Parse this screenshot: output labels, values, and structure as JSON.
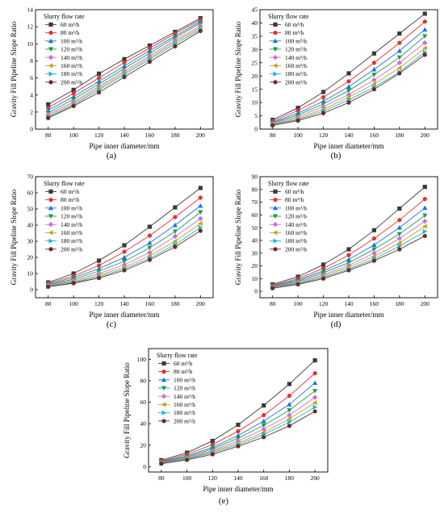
{
  "figure": {
    "panel_labels": [
      "(a)",
      "(b)",
      "(c)",
      "(d)",
      "(e)"
    ]
  },
  "legend": {
    "title": "Slurry flow rate",
    "unit_suffix": " m³/h"
  },
  "series_style": [
    {
      "name": "60",
      "color": "#3a3a3a",
      "marker": "square"
    },
    {
      "name": "80",
      "color": "#e8312f",
      "marker": "circle"
    },
    {
      "name": "100",
      "color": "#1f6fe0",
      "marker": "triangle-up"
    },
    {
      "name": "120",
      "color": "#1a9e4a",
      "marker": "triangle-down"
    },
    {
      "name": "140",
      "color": "#c86fd8",
      "marker": "diamond"
    },
    {
      "name": "160",
      "color": "#c8a21a",
      "marker": "triangle-left"
    },
    {
      "name": "180",
      "color": "#16b8d8",
      "marker": "triangle-right"
    },
    {
      "name": "200",
      "color": "#6b2a2a",
      "marker": "circle"
    }
  ],
  "chart_data": [
    {
      "type": "line",
      "panel": "(a)",
      "xlabel": "Pipe inner diameter/mm",
      "ylabel": "Gravity Fill Pipeline Slope Ratio",
      "x": [
        80,
        100,
        120,
        140,
        160,
        180,
        200
      ],
      "xlim": [
        70,
        210
      ],
      "ylim": [
        0,
        14
      ],
      "yticks": [
        0,
        2,
        4,
        6,
        8,
        10,
        12,
        14
      ],
      "legend_title": "Slurry flow rate",
      "legend_position": "top-left",
      "series": [
        {
          "name": "60 m³/h",
          "values": [
            2.9,
            4.6,
            6.5,
            8.2,
            9.8,
            11.4,
            13.0
          ]
        },
        {
          "name": "80 m³/h",
          "values": [
            2.5,
            4.2,
            6.0,
            7.8,
            9.5,
            11.2,
            12.8
          ]
        },
        {
          "name": "100 m³/h",
          "values": [
            2.2,
            3.8,
            5.6,
            7.4,
            9.2,
            10.9,
            12.6
          ]
        },
        {
          "name": "120 m³/h",
          "values": [
            1.9,
            3.5,
            5.3,
            7.1,
            8.9,
            10.7,
            12.4
          ]
        },
        {
          "name": "140 m³/h",
          "values": [
            1.7,
            3.2,
            5.0,
            6.8,
            8.6,
            10.4,
            12.1
          ]
        },
        {
          "name": "160 m³/h",
          "values": [
            1.55,
            3.0,
            4.8,
            6.6,
            8.4,
            10.2,
            11.9
          ]
        },
        {
          "name": "180 m³/h",
          "values": [
            1.4,
            2.85,
            4.6,
            6.4,
            8.2,
            10.0,
            11.7
          ]
        },
        {
          "name": "200 m³/h",
          "values": [
            1.3,
            2.7,
            4.3,
            6.1,
            7.9,
            9.7,
            11.5
          ]
        }
      ]
    },
    {
      "type": "line",
      "panel": "(b)",
      "xlabel": "Pipe inner diameter/mm",
      "ylabel": "Gravity Fill Pipeline Slope Ratio",
      "x": [
        80,
        100,
        120,
        140,
        160,
        180,
        200
      ],
      "xlim": [
        70,
        210
      ],
      "ylim": [
        0,
        45
      ],
      "yticks": [
        0,
        5,
        10,
        15,
        20,
        25,
        30,
        35,
        40,
        45
      ],
      "legend_title": "Slurry flow rate",
      "legend_position": "top-left",
      "series": [
        {
          "name": "60 m³/h",
          "values": [
            3.5,
            8.0,
            14.0,
            21.0,
            28.5,
            36.0,
            43.5
          ]
        },
        {
          "name": "80 m³/h",
          "values": [
            3.0,
            7.0,
            12.0,
            18.0,
            25.0,
            32.5,
            40.5
          ]
        },
        {
          "name": "100 m³/h",
          "values": [
            2.6,
            6.0,
            10.5,
            16.0,
            22.5,
            29.5,
            37.5
          ]
        },
        {
          "name": "120 m³/h",
          "values": [
            2.3,
            5.3,
            9.5,
            14.5,
            20.5,
            27.0,
            35.0
          ]
        },
        {
          "name": "140 m³/h",
          "values": [
            2.0,
            4.6,
            8.5,
            13.0,
            18.5,
            25.0,
            32.5
          ]
        },
        {
          "name": "160 m³/h",
          "values": [
            1.8,
            4.0,
            7.5,
            12.0,
            17.0,
            23.0,
            30.5
          ]
        },
        {
          "name": "180 m³/h",
          "values": [
            1.6,
            3.6,
            6.8,
            11.0,
            15.8,
            21.5,
            29.0
          ]
        },
        {
          "name": "200 m³/h",
          "values": [
            1.4,
            3.2,
            6.0,
            10.0,
            15.0,
            21.0,
            28.0
          ]
        }
      ]
    },
    {
      "type": "line",
      "panel": "(c)",
      "xlabel": "Pipe inner diameter/mm",
      "ylabel": "Gravity Fill Pipeline Slope Ratio",
      "x": [
        80,
        100,
        120,
        140,
        160,
        180,
        200
      ],
      "xlim": [
        70,
        210
      ],
      "ylim": [
        -5,
        70
      ],
      "yticks": [
        0,
        10,
        20,
        30,
        40,
        50,
        60,
        70
      ],
      "legend_title": "Slurry flow rate",
      "legend_position": "top-left",
      "series": [
        {
          "name": "60 m³/h",
          "values": [
            4.5,
            10.0,
            18.0,
            27.5,
            39.0,
            51.0,
            63.0
          ]
        },
        {
          "name": "80 m³/h",
          "values": [
            4.0,
            8.5,
            15.0,
            23.5,
            33.5,
            45.0,
            57.0
          ]
        },
        {
          "name": "100 m³/h",
          "values": [
            3.5,
            7.5,
            13.0,
            20.0,
            29.0,
            40.0,
            52.0
          ]
        },
        {
          "name": "120 m³/h",
          "values": [
            3.0,
            6.5,
            11.5,
            17.5,
            26.0,
            36.0,
            48.0
          ]
        },
        {
          "name": "140 m³/h",
          "values": [
            2.6,
            5.7,
            10.0,
            15.5,
            23.0,
            33.0,
            44.0
          ]
        },
        {
          "name": "160 m³/h",
          "values": [
            2.3,
            5.0,
            9.0,
            14.0,
            21.0,
            30.0,
            41.0
          ]
        },
        {
          "name": "180 m³/h",
          "values": [
            2.0,
            4.5,
            8.0,
            13.0,
            19.5,
            28.0,
            38.5
          ]
        },
        {
          "name": "200 m³/h",
          "values": [
            1.8,
            4.0,
            7.2,
            12.0,
            18.5,
            26.5,
            36.5
          ]
        }
      ]
    },
    {
      "type": "line",
      "panel": "(d)",
      "xlabel": "Pipe inner diameter/mm",
      "ylabel": "Gravity Fill Pipeline Slope Ratio",
      "x": [
        80,
        100,
        120,
        140,
        160,
        180,
        200
      ],
      "xlim": [
        70,
        210
      ],
      "ylim": [
        -5,
        90
      ],
      "yticks": [
        0,
        10,
        20,
        30,
        40,
        50,
        60,
        70,
        80,
        90
      ],
      "legend_title": "Slurry flow rate",
      "legend_position": "top-left",
      "series": [
        {
          "name": "60 m³/h",
          "values": [
            5.5,
            11.5,
            21.0,
            33.0,
            48.0,
            65.0,
            82.0
          ]
        },
        {
          "name": "80 m³/h",
          "values": [
            4.8,
            10.0,
            18.0,
            28.5,
            41.5,
            56.0,
            72.5
          ]
        },
        {
          "name": "100 m³/h",
          "values": [
            4.2,
            9.0,
            16.0,
            25.0,
            36.5,
            50.0,
            65.5
          ]
        },
        {
          "name": "120 m³/h",
          "values": [
            3.7,
            8.0,
            14.5,
            22.5,
            33.0,
            45.0,
            59.5
          ]
        },
        {
          "name": "140 m³/h",
          "values": [
            3.3,
            7.2,
            13.0,
            20.5,
            30.0,
            41.5,
            55.0
          ]
        },
        {
          "name": "160 m³/h",
          "values": [
            3.0,
            6.5,
            12.0,
            19.0,
            27.5,
            38.0,
            51.0
          ]
        },
        {
          "name": "180 m³/h",
          "values": [
            2.7,
            6.0,
            11.0,
            17.5,
            25.5,
            35.5,
            47.0
          ]
        },
        {
          "name": "200 m³/h",
          "values": [
            2.5,
            5.5,
            10.0,
            16.5,
            24.0,
            33.0,
            43.5
          ]
        }
      ]
    },
    {
      "type": "line",
      "panel": "(e)",
      "xlabel": "Pipe inner diameter/mm",
      "ylabel": "Gravity Fill Pipeline Slope Ratio",
      "x": [
        80,
        100,
        120,
        140,
        160,
        180,
        200
      ],
      "xlim": [
        70,
        210
      ],
      "ylim": [
        -5,
        110
      ],
      "yticks": [
        0,
        20,
        40,
        60,
        80,
        100
      ],
      "legend_title": "Slurry flow rate",
      "legend_position": "top-left",
      "series": [
        {
          "name": "60 m³/h",
          "values": [
            6.0,
            13.0,
            24.0,
            39.0,
            57.0,
            77.0,
            99.0
          ]
        },
        {
          "name": "80 m³/h",
          "values": [
            5.2,
            11.5,
            20.5,
            33.0,
            48.0,
            66.0,
            87.0
          ]
        },
        {
          "name": "100 m³/h",
          "values": [
            4.6,
            10.0,
            18.0,
            29.0,
            42.5,
            58.0,
            78.0
          ]
        },
        {
          "name": "120 m³/h",
          "values": [
            4.1,
            9.0,
            16.5,
            26.5,
            38.5,
            52.5,
            70.5
          ]
        },
        {
          "name": "140 m³/h",
          "values": [
            3.7,
            8.2,
            15.0,
            24.0,
            35.0,
            48.0,
            64.5
          ]
        },
        {
          "name": "160 m³/h",
          "values": [
            3.4,
            7.5,
            14.0,
            22.0,
            32.0,
            44.5,
            59.5
          ]
        },
        {
          "name": "180 m³/h",
          "values": [
            3.1,
            7.0,
            13.0,
            20.5,
            30.0,
            41.5,
            55.5
          ]
        },
        {
          "name": "200 m³/h",
          "values": [
            2.8,
            6.3,
            11.5,
            19.0,
            27.5,
            38.0,
            51.5
          ]
        }
      ]
    }
  ]
}
